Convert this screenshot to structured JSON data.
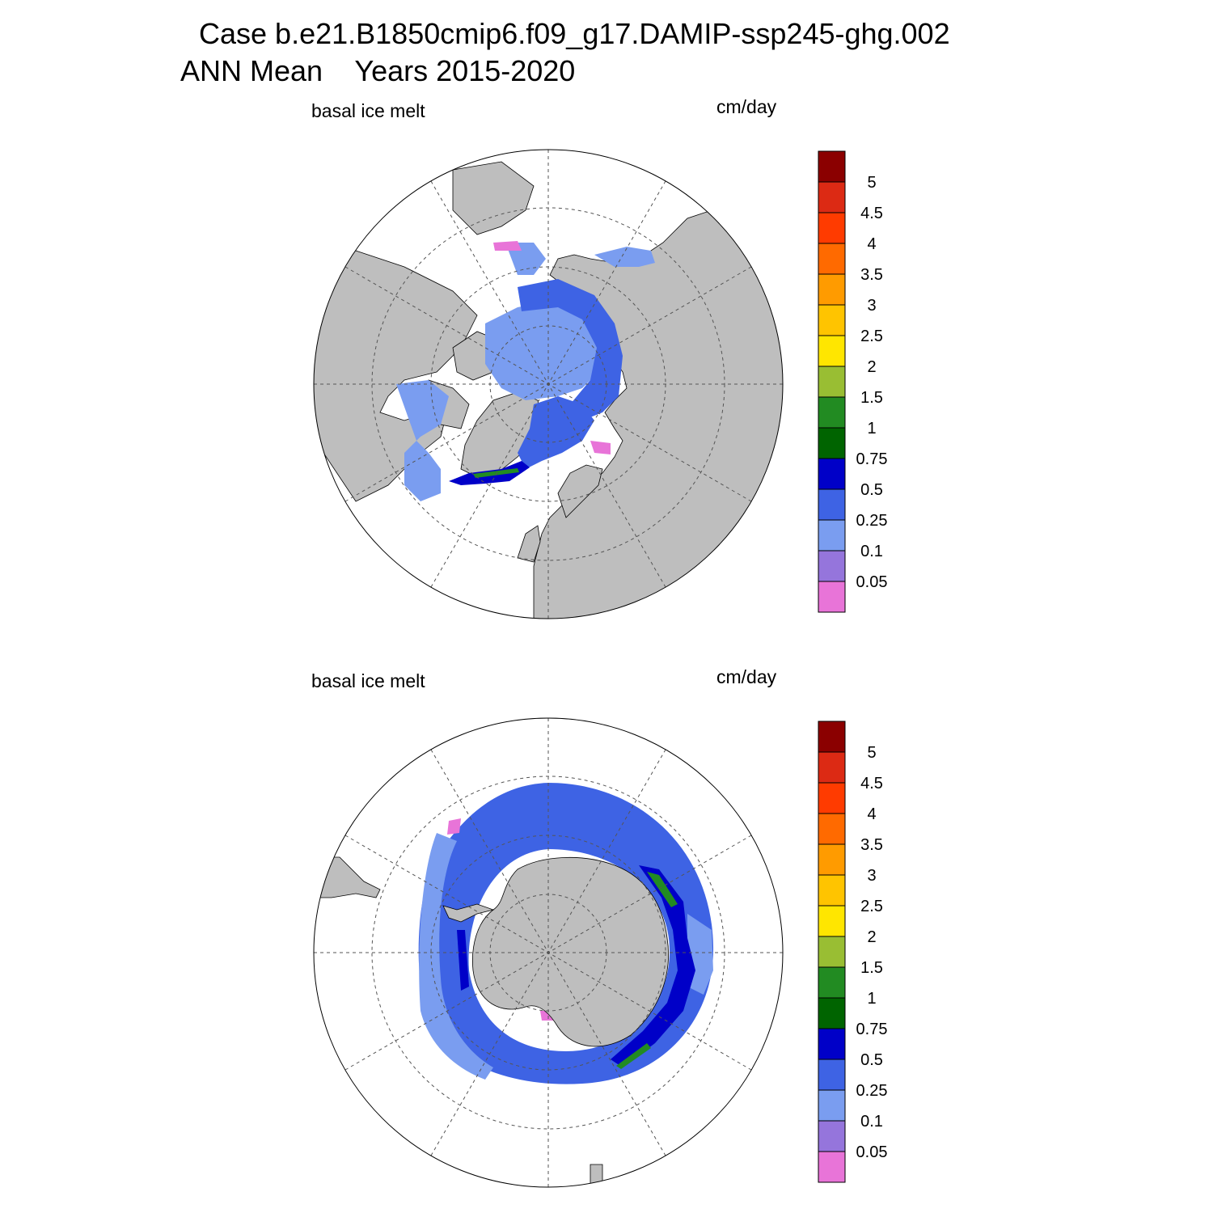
{
  "title": {
    "line1": "Case b.e21.B1850cmip6.f09_g17.DAMIP-ssp245-ghg.002",
    "line2": "ANN Mean    Years 2015-2020"
  },
  "panels": [
    {
      "id": "north",
      "variable_label": "basal ice melt",
      "units_label": "cm/day"
    },
    {
      "id": "south",
      "variable_label": "basal ice melt",
      "units_label": "cm/day"
    }
  ],
  "colorbar": {
    "levels": [
      "0.05",
      "0.1",
      "0.25",
      "0.5",
      "0.75",
      "1",
      "1.5",
      "2",
      "2.5",
      "3",
      "3.5",
      "4",
      "4.5",
      "5"
    ],
    "colors": [
      "#e874d8",
      "#9575dc",
      "#7a9df0",
      "#3e63e4",
      "#0000c8",
      "#006400",
      "#228b22",
      "#99be33",
      "#ffe600",
      "#ffc400",
      "#ff9b00",
      "#ff6a00",
      "#ff3b00",
      "#dc2a14",
      "#8b0000"
    ]
  },
  "map_colors": {
    "land": "#bebebe",
    "ocean_no_data": "#ffffff",
    "grid_line": "#555555"
  }
}
